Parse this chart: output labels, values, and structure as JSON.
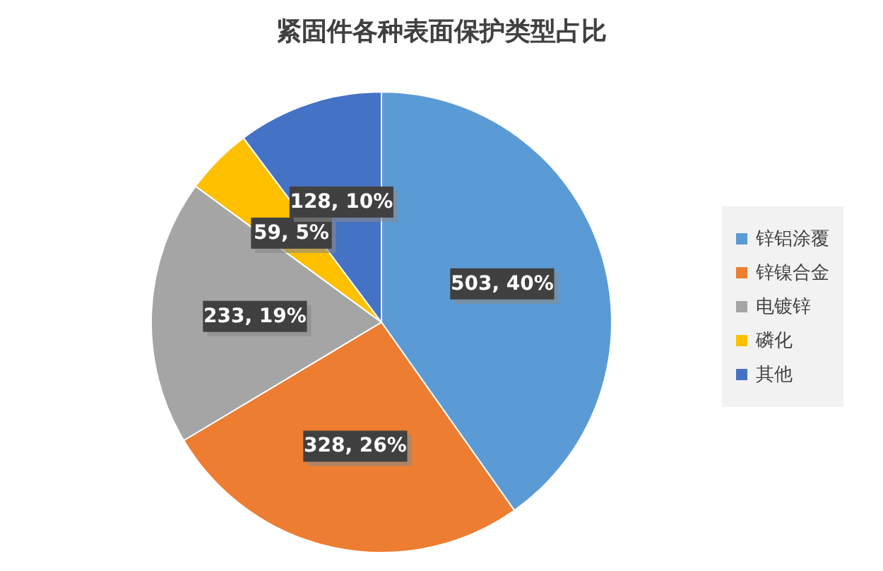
{
  "chart_data": {
    "type": "pie",
    "title": "紧固件各种表面保护类型占比",
    "categories": [
      "锌铝涂覆",
      "锌镍合金",
      "电镀锌",
      "磷化",
      "其他"
    ],
    "values": [
      503,
      328,
      233,
      59,
      128
    ],
    "colors": [
      "#5b9bd5",
      "#ed7d31",
      "#a5a5a5",
      "#ffc000",
      "#4472c4"
    ],
    "value_labels": [
      "503, 40%",
      "328, 26%",
      "233, 19%",
      "59, 5%",
      "128, 10%"
    ],
    "legend": "right"
  }
}
